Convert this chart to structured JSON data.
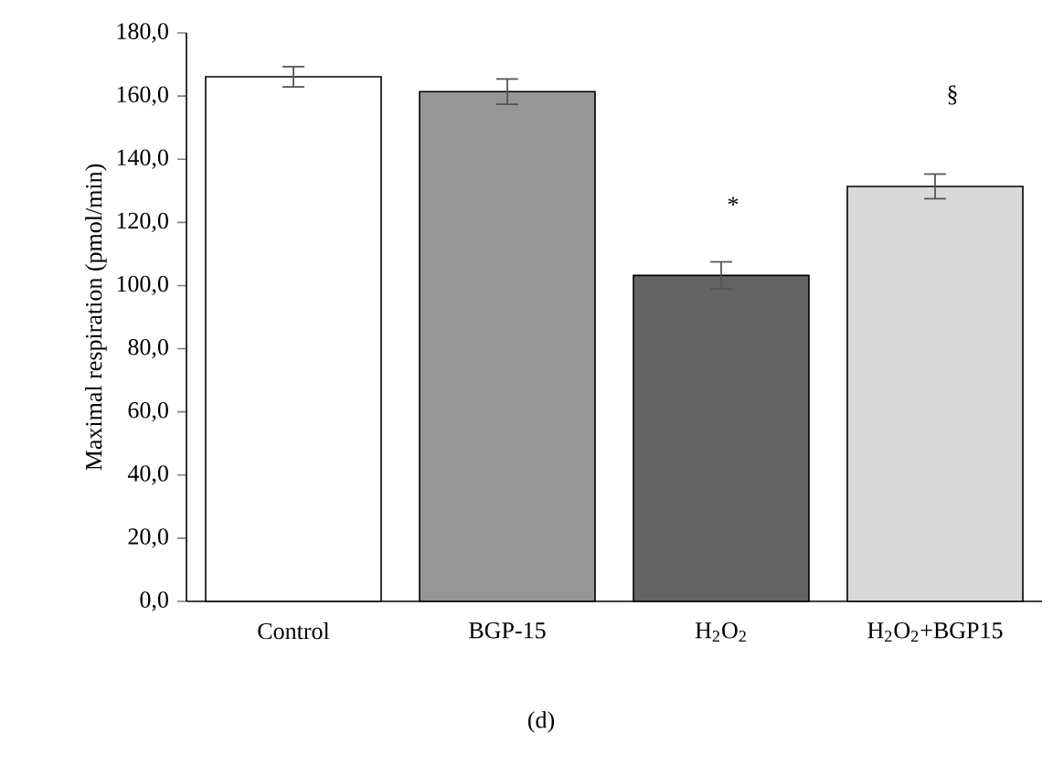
{
  "chart_data": {
    "type": "bar",
    "ylabel": "Maximal respiration (pmol/min)",
    "categories": [
      "Control",
      "BGP-15",
      "H$_{2}$O$_{2}$",
      "H$_{2}$O$_{2}$+BGP15"
    ],
    "values": [
      166.1,
      161.4,
      103.2,
      131.4
    ],
    "errors": [
      3.2,
      4.0,
      4.3,
      3.9
    ],
    "colors": [
      "#ffffff",
      "#969696",
      "#646464",
      "#d9d9d9"
    ],
    "ylim": [
      0,
      180
    ],
    "yticks": [
      {
        "value": 0,
        "label": "0,0"
      },
      {
        "value": 20,
        "label": "20,0"
      },
      {
        "value": 40,
        "label": "40,0"
      },
      {
        "value": 60,
        "label": "60,0"
      },
      {
        "value": 80,
        "label": "80,0"
      },
      {
        "value": 100,
        "label": "100,0"
      },
      {
        "value": 120,
        "label": "120,0"
      },
      {
        "value": 140,
        "label": "140,0"
      },
      {
        "value": 160,
        "label": "160,0"
      },
      {
        "value": 180,
        "label": "180,0"
      }
    ],
    "annotations": [
      "*",
      "§",
      "(d)"
    ],
    "grid": false
  }
}
